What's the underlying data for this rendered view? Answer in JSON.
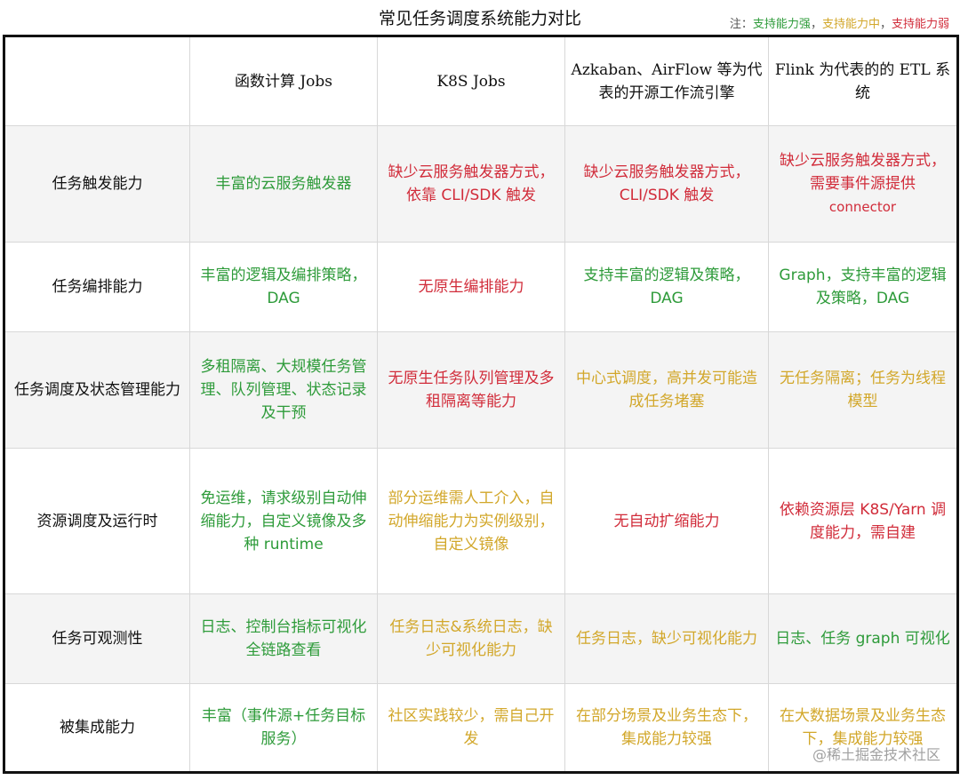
{
  "title": "常见任务调度系统能力对比",
  "legend": {
    "prefix": "注：",
    "strong": "支持能力强",
    "mid": "支持能力中",
    "weak": "支持能力弱",
    "sep": "，",
    "colors": {
      "strong": "#2e9b3a",
      "mid": "#d2a72a",
      "weak": "#d12c3a"
    }
  },
  "columns": [
    "函数计算 Jobs",
    "K8S Jobs",
    "Azkaban、AirFlow 等为代表的开源工作流引擎",
    "Flink 为代表的的 ETL 系统"
  ],
  "rows": [
    {
      "label": "任务触发能力",
      "cells": [
        {
          "text": "丰富的云服务触发器",
          "level": "strong"
        },
        {
          "text": "缺少云服务触发器方式，依靠 CLI/SDK 触发",
          "level": "weak"
        },
        {
          "text": "缺少云服务触发器方式，CLI/SDK 触发",
          "level": "weak"
        },
        {
          "text": "缺少云服务触发器方式，需要事件源提供",
          "sub": "connector",
          "level": "weak"
        }
      ]
    },
    {
      "label": "任务编排能力",
      "cells": [
        {
          "text": "丰富的逻辑及编排策略，DAG",
          "level": "strong"
        },
        {
          "text": "无原生编排能力",
          "level": "weak"
        },
        {
          "text": "支持丰富的逻辑及策略，DAG",
          "level": "strong"
        },
        {
          "text": "Graph，支持丰富的逻辑及策略，DAG",
          "level": "strong"
        }
      ]
    },
    {
      "label": "任务调度及状态管理能力",
      "cells": [
        {
          "text": "多租隔离、大规模任务管理、队列管理、状态记录及干预",
          "level": "strong"
        },
        {
          "text": "无原生任务队列管理及多租隔离等能力",
          "level": "weak"
        },
        {
          "text": "中心式调度，高并发可能造成任务堵塞",
          "level": "mid"
        },
        {
          "text": "无任务隔离；任务为线程模型",
          "level": "mid"
        }
      ]
    },
    {
      "label": "资源调度及运行时",
      "cells": [
        {
          "text": "免运维，请求级别自动伸缩能力，自定义镜像及多种 runtime",
          "level": "strong"
        },
        {
          "text": "部分运维需人工介入，自动伸缩能力为实例级别，自定义镜像",
          "level": "mid"
        },
        {
          "text": "无自动扩缩能力",
          "level": "weak"
        },
        {
          "text": "依赖资源层 K8S/Yarn 调度能力，需自建",
          "level": "weak"
        }
      ]
    },
    {
      "label": "任务可观测性",
      "cells": [
        {
          "text": "日志、控制台指标可视化全链路查看",
          "level": "strong"
        },
        {
          "text": "任务日志&系统日志，缺少可视化能力",
          "level": "mid"
        },
        {
          "text": "任务日志，缺少可视化能力",
          "level": "mid"
        },
        {
          "text": "日志、任务 graph 可视化",
          "level": "strong"
        }
      ]
    },
    {
      "label": "被集成能力",
      "cells": [
        {
          "text": "丰富（事件源+任务目标服务）",
          "level": "strong"
        },
        {
          "text": "社区实践较少，需自己开发",
          "level": "mid"
        },
        {
          "text": "在部分场景及业务生态下，集成能力较强",
          "level": "mid"
        },
        {
          "text": "在大数据场景及业务生态下，集成能力较强",
          "level": "mid"
        }
      ]
    }
  ],
  "watermark": "@稀土掘金技术社区"
}
